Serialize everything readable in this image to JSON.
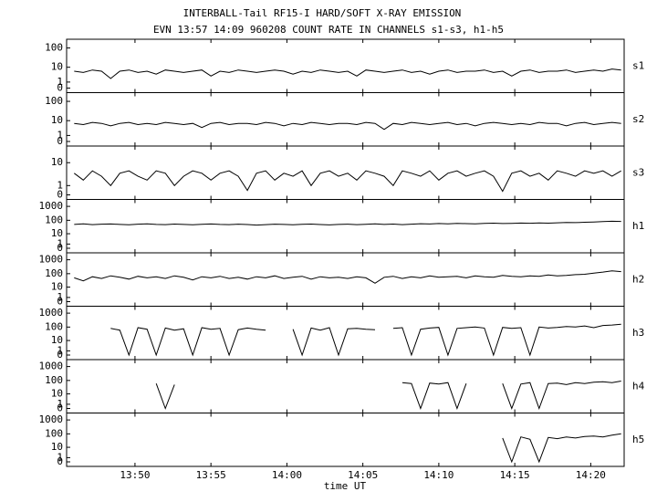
{
  "chart_data": {
    "type": "line",
    "title": "INTERBALL-Tail RF15-I HARD/SOFT X-RAY EMISSION",
    "subtitle": "EVN 13:57 14:09 960208  COUNT RATE IN CHANNELS s1-s3, h1-h5",
    "x_label": "time UT",
    "yscale": "log1p",
    "color": "#000000",
    "xlim": [
      825.5,
      862.2
    ],
    "xticks": [
      {
        "value": 830,
        "label": "13:50"
      },
      {
        "value": 835,
        "label": "13:55"
      },
      {
        "value": 840,
        "label": "14:00"
      },
      {
        "value": 845,
        "label": "14:05"
      },
      {
        "value": 850,
        "label": "14:10"
      },
      {
        "value": 855,
        "label": "14:15"
      },
      {
        "value": 860,
        "label": "14:20"
      }
    ],
    "x": [
      826,
      826.6,
      827.2,
      827.8,
      828.4,
      829,
      829.6,
      830.2,
      830.8,
      831.4,
      832,
      832.6,
      833.2,
      833.8,
      834.4,
      835,
      835.6,
      836.2,
      836.8,
      837.4,
      838,
      838.6,
      839.2,
      839.8,
      840.4,
      841,
      841.6,
      842.2,
      842.8,
      843.4,
      844,
      844.6,
      845.2,
      845.8,
      846.4,
      847,
      847.6,
      848.2,
      848.8,
      849.4,
      850,
      850.6,
      851.2,
      851.8,
      852.4,
      853,
      853.6,
      854.2,
      854.8,
      855.4,
      856,
      856.6,
      857.2,
      857.8,
      858.4,
      859,
      859.6,
      860.2,
      860.8,
      861.4,
      862
    ],
    "series": [
      {
        "name": "s1",
        "ylim": [
          0,
          200
        ],
        "yticks": [
          0,
          1,
          10,
          100
        ],
        "values": [
          6,
          5,
          7,
          6,
          2,
          6,
          7,
          5,
          6,
          4,
          7,
          6,
          5,
          6,
          7,
          3,
          6,
          5,
          7,
          6,
          5,
          6,
          7,
          6,
          4,
          6,
          5,
          7,
          6,
          5,
          6,
          3,
          7,
          6,
          5,
          6,
          7,
          5,
          6,
          4,
          6,
          7,
          5,
          6,
          6,
          7,
          5,
          6,
          3,
          6,
          7,
          5,
          6,
          6,
          7,
          5,
          6,
          7,
          6,
          8,
          7
        ]
      },
      {
        "name": "s2",
        "ylim": [
          0,
          200
        ],
        "yticks": [
          0,
          1,
          10,
          100
        ],
        "values": [
          7,
          6,
          8,
          7,
          5,
          7,
          8,
          6,
          7,
          6,
          8,
          7,
          6,
          7,
          4,
          7,
          8,
          6,
          7,
          7,
          6,
          8,
          7,
          5,
          7,
          6,
          8,
          7,
          6,
          7,
          7,
          6,
          8,
          7,
          3,
          7,
          6,
          8,
          7,
          6,
          7,
          8,
          6,
          7,
          5,
          7,
          8,
          7,
          6,
          7,
          6,
          8,
          7,
          7,
          5,
          7,
          8,
          6,
          7,
          8,
          7
        ]
      },
      {
        "name": "s3",
        "ylim": [
          0,
          30
        ],
        "yticks": [
          0,
          1,
          10
        ],
        "values": [
          4,
          2,
          5,
          3,
          1,
          4,
          5,
          3,
          2,
          5,
          4,
          1,
          3,
          5,
          4,
          2,
          4,
          5,
          3,
          0.4,
          4,
          5,
          2,
          4,
          3,
          5,
          1,
          4,
          5,
          3,
          4,
          2,
          5,
          4,
          3,
          1,
          5,
          4,
          3,
          5,
          2,
          4,
          5,
          3,
          4,
          5,
          3,
          0.3,
          4,
          5,
          3,
          4,
          2,
          5,
          4,
          3,
          5,
          4,
          5,
          3,
          5
        ]
      },
      {
        "name": "h1",
        "ylim": [
          0,
          2000
        ],
        "yticks": [
          0,
          1,
          10,
          100,
          1000
        ],
        "values": [
          50,
          55,
          48,
          52,
          54,
          50,
          47,
          52,
          55,
          50,
          48,
          53,
          50,
          47,
          51,
          54,
          50,
          48,
          52,
          49,
          45,
          48,
          52,
          50,
          47,
          51,
          53,
          49,
          46,
          50,
          52,
          48,
          51,
          55,
          50,
          53,
          48,
          52,
          56,
          54,
          58,
          55,
          60,
          57,
          55,
          59,
          62,
          58,
          60,
          63,
          61,
          65,
          62,
          66,
          70,
          68,
          72,
          75,
          80,
          85,
          82
        ]
      },
      {
        "name": "h2",
        "ylim": [
          0,
          2000
        ],
        "yticks": [
          0,
          1,
          10,
          100,
          1000
        ],
        "values": [
          50,
          30,
          60,
          45,
          70,
          55,
          40,
          65,
          50,
          60,
          45,
          70,
          55,
          35,
          60,
          50,
          65,
          45,
          55,
          40,
          60,
          50,
          70,
          45,
          55,
          65,
          40,
          60,
          50,
          55,
          45,
          60,
          50,
          20,
          55,
          65,
          45,
          60,
          50,
          70,
          55,
          60,
          65,
          50,
          70,
          60,
          55,
          75,
          65,
          60,
          70,
          65,
          80,
          70,
          75,
          85,
          90,
          110,
          130,
          160,
          140
        ]
      },
      {
        "name": "h3",
        "ylim": [
          0,
          2000
        ],
        "yticks": [
          0,
          1,
          10,
          100,
          1000
        ],
        "values": [
          null,
          null,
          null,
          null,
          80,
          60,
          0,
          90,
          70,
          0,
          85,
          60,
          75,
          0,
          90,
          70,
          80,
          0,
          65,
          85,
          70,
          60,
          null,
          null,
          70,
          0,
          85,
          60,
          90,
          0,
          75,
          80,
          70,
          65,
          null,
          80,
          90,
          0,
          70,
          85,
          95,
          0,
          80,
          90,
          100,
          85,
          0,
          95,
          80,
          90,
          0,
          100,
          85,
          95,
          110,
          100,
          120,
          90,
          130,
          140,
          160
        ]
      },
      {
        "name": "h4",
        "ylim": [
          0,
          2000
        ],
        "yticks": [
          0,
          1,
          10,
          100,
          1000
        ],
        "values": [
          null,
          null,
          null,
          null,
          null,
          null,
          null,
          null,
          null,
          60,
          0,
          50,
          null,
          null,
          null,
          null,
          null,
          null,
          null,
          null,
          null,
          null,
          null,
          null,
          null,
          null,
          null,
          null,
          null,
          null,
          null,
          null,
          null,
          null,
          null,
          null,
          70,
          60,
          0,
          65,
          55,
          70,
          0,
          60,
          null,
          null,
          null,
          60,
          0,
          55,
          70,
          0,
          60,
          65,
          50,
          70,
          60,
          75,
          80,
          70,
          90
        ]
      },
      {
        "name": "h5",
        "ylim": [
          0,
          2000
        ],
        "yticks": [
          0,
          1,
          10,
          100,
          1000
        ],
        "values": [
          null,
          null,
          null,
          null,
          null,
          null,
          null,
          null,
          null,
          null,
          null,
          null,
          null,
          null,
          null,
          null,
          null,
          null,
          null,
          null,
          null,
          null,
          null,
          null,
          null,
          null,
          null,
          null,
          null,
          null,
          null,
          null,
          null,
          null,
          null,
          null,
          null,
          null,
          null,
          null,
          null,
          null,
          null,
          null,
          null,
          null,
          null,
          50,
          0,
          60,
          40,
          0,
          55,
          45,
          60,
          50,
          65,
          70,
          60,
          80,
          100
        ]
      }
    ]
  }
}
